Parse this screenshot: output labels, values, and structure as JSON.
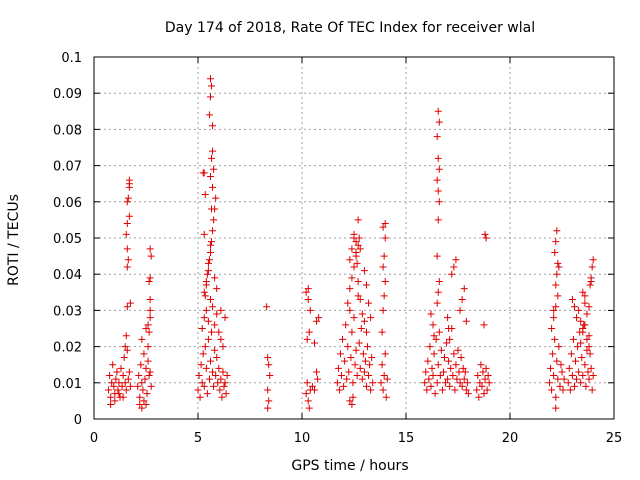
{
  "chart_data": {
    "type": "scatter",
    "title": "Day 174 of 2018, Rate Of TEC Index for receiver wlal",
    "xlabel": "GPS time / hours",
    "ylabel": "ROTI / TECUs",
    "xlim": [
      0,
      25
    ],
    "ylim": [
      0,
      0.1
    ],
    "xticks": [
      "0",
      "5",
      "10",
      "15",
      "20",
      "25"
    ],
    "yticks": [
      "0",
      "0.01",
      "0.02",
      "0.03",
      "0.04",
      "0.05",
      "0.06",
      "0.07",
      "0.08",
      "0.09",
      "0.1"
    ],
    "grid": true,
    "marker": "plus",
    "series_color": "#e00000",
    "series": [
      {
        "name": "ROTI",
        "x": [
          0.7,
          0.75,
          0.8,
          0.85,
          0.9,
          0.95,
          1.0,
          1.05,
          1.1,
          1.15,
          1.2,
          1.25,
          1.3,
          1.35,
          1.4,
          1.45,
          1.5,
          1.55,
          1.6,
          1.65,
          1.7,
          1.75,
          0.8,
          1.0,
          1.2,
          1.4,
          1.5,
          1.55,
          1.6,
          1.6,
          1.65,
          1.6,
          1.55,
          1.6,
          1.7,
          1.6,
          1.65,
          1.7,
          1.7,
          1.7,
          1.75,
          2.1,
          2.15,
          2.2,
          2.25,
          2.3,
          2.35,
          2.4,
          2.45,
          2.5,
          2.55,
          2.6,
          2.65,
          2.7,
          2.75,
          2.2,
          2.3,
          2.4,
          2.5,
          2.6,
          2.65,
          2.7,
          2.7,
          2.7,
          2.65,
          2.7,
          2.75,
          2.7,
          2.6,
          2.3,
          2.5,
          5.0,
          5.05,
          5.1,
          5.15,
          5.2,
          5.25,
          5.3,
          5.35,
          5.4,
          5.45,
          5.5,
          5.55,
          5.6,
          5.65,
          5.7,
          5.75,
          5.8,
          5.85,
          5.9,
          5.95,
          6.0,
          6.05,
          6.1,
          6.15,
          6.2,
          6.25,
          6.3,
          6.35,
          6.4,
          5.2,
          5.3,
          5.4,
          5.5,
          5.6,
          5.7,
          5.8,
          5.9,
          6.0,
          6.1,
          6.2,
          5.3,
          5.4,
          5.5,
          5.55,
          5.6,
          5.65,
          5.7,
          5.75,
          5.8,
          5.85,
          5.3,
          5.35,
          5.25,
          5.6,
          5.65,
          5.7,
          5.75,
          5.55,
          5.6,
          5.65,
          5.6,
          5.7,
          5.7,
          5.65,
          5.6,
          5.5,
          5.45,
          5.4,
          5.35,
          5.3,
          5.8,
          5.9,
          6.1,
          6.3,
          8.3,
          8.35,
          8.4,
          8.45,
          8.35,
          8.4,
          8.35,
          10.2,
          10.25,
          10.3,
          10.35,
          10.4,
          10.5,
          10.6,
          10.7,
          10.75,
          10.8,
          10.3,
          10.4,
          10.6,
          10.7,
          10.2,
          10.3,
          10.25,
          10.35,
          11.7,
          11.75,
          11.8,
          11.85,
          11.9,
          11.95,
          12.0,
          12.05,
          12.1,
          12.15,
          12.2,
          12.25,
          12.3,
          12.35,
          12.4,
          12.45,
          12.5,
          12.55,
          12.6,
          12.65,
          12.7,
          12.75,
          12.8,
          12.85,
          12.9,
          12.95,
          13.0,
          13.05,
          13.1,
          13.15,
          13.2,
          13.25,
          13.3,
          13.35,
          13.4,
          12.2,
          12.3,
          12.4,
          12.5,
          12.6,
          12.7,
          12.8,
          12.9,
          13.0,
          13.1,
          12.3,
          12.4,
          12.5,
          12.6,
          12.7,
          12.5,
          12.6,
          12.65,
          12.7,
          12.75,
          12.8,
          13.0,
          13.1,
          13.2,
          13.3,
          12.3,
          12.4,
          12.45,
          13.8,
          13.85,
          13.9,
          13.95,
          14.0,
          14.05,
          14.1,
          13.85,
          13.9,
          13.95,
          14.0,
          13.9,
          13.95,
          14.0,
          14.0,
          13.9,
          15.9,
          15.95,
          16.0,
          16.05,
          16.1,
          16.15,
          16.2,
          16.25,
          16.3,
          16.35,
          16.4,
          16.45,
          16.5,
          16.55,
          16.6,
          16.65,
          16.7,
          16.75,
          16.8,
          16.85,
          16.9,
          16.95,
          17.0,
          17.05,
          17.1,
          17.15,
          17.2,
          17.25,
          17.3,
          17.35,
          17.4,
          17.45,
          17.5,
          17.55,
          17.6,
          17.65,
          17.7,
          17.75,
          17.8,
          17.85,
          17.9,
          17.95,
          18.0,
          16.5,
          16.55,
          16.6,
          16.55,
          16.6,
          16.55,
          16.5,
          16.6,
          16.55,
          16.5,
          16.6,
          16.55,
          16.5,
          17.0,
          17.05,
          17.1,
          17.6,
          17.7,
          17.8,
          16.2,
          16.3,
          16.35,
          17.2,
          17.3,
          17.4,
          17.9,
          18.4,
          18.45,
          18.5,
          18.55,
          18.6,
          18.65,
          18.7,
          18.75,
          18.8,
          18.85,
          18.9,
          18.95,
          19.0,
          18.8,
          18.85,
          18.75,
          21.9,
          21.95,
          22.0,
          22.05,
          22.1,
          22.15,
          22.2,
          22.25,
          22.3,
          22.35,
          22.4,
          22.45,
          22.5,
          22.55,
          22.6,
          22.0,
          22.1,
          22.2,
          22.3,
          22.2,
          22.25,
          22.3,
          22.15,
          22.2,
          22.25,
          22.35,
          22.1,
          22.2,
          22.8,
          22.85,
          22.9,
          22.95,
          23.0,
          23.05,
          23.1,
          23.15,
          23.2,
          23.25,
          23.3,
          23.35,
          23.4,
          23.45,
          23.5,
          23.55,
          23.6,
          23.65,
          23.7,
          23.75,
          23.8,
          23.85,
          23.9,
          23.95,
          24.0,
          23.2,
          23.3,
          23.4,
          23.5,
          23.6,
          23.7,
          23.8,
          23.4,
          23.5,
          23.6,
          23.7,
          23.8,
          23.0,
          23.1,
          23.5,
          23.6,
          23.8,
          23.9,
          23.85,
          23.9,
          23.95,
          24.0
        ],
        "y": [
          0.008,
          0.012,
          0.006,
          0.01,
          0.015,
          0.009,
          0.007,
          0.011,
          0.013,
          0.008,
          0.01,
          0.006,
          0.014,
          0.009,
          0.012,
          0.017,
          0.01,
          0.008,
          0.019,
          0.011,
          0.013,
          0.009,
          0.004,
          0.005,
          0.007,
          0.006,
          0.02,
          0.023,
          0.031,
          0.042,
          0.044,
          0.047,
          0.051,
          0.054,
          0.056,
          0.06,
          0.061,
          0.064,
          0.065,
          0.066,
          0.032,
          0.009,
          0.012,
          0.006,
          0.015,
          0.01,
          0.008,
          0.018,
          0.011,
          0.014,
          0.007,
          0.016,
          0.012,
          0.013,
          0.009,
          0.004,
          0.003,
          0.005,
          0.004,
          0.02,
          0.024,
          0.028,
          0.03,
          0.033,
          0.038,
          0.039,
          0.045,
          0.047,
          0.026,
          0.022,
          0.025,
          0.008,
          0.012,
          0.006,
          0.015,
          0.01,
          0.018,
          0.009,
          0.02,
          0.014,
          0.007,
          0.022,
          0.011,
          0.016,
          0.024,
          0.013,
          0.009,
          0.019,
          0.012,
          0.017,
          0.01,
          0.014,
          0.008,
          0.011,
          0.006,
          0.013,
          0.009,
          0.01,
          0.007,
          0.012,
          0.025,
          0.028,
          0.03,
          0.027,
          0.033,
          0.031,
          0.026,
          0.029,
          0.024,
          0.022,
          0.02,
          0.035,
          0.038,
          0.041,
          0.044,
          0.046,
          0.049,
          0.052,
          0.055,
          0.058,
          0.061,
          0.068,
          0.062,
          0.068,
          0.067,
          0.072,
          0.074,
          0.069,
          0.084,
          0.089,
          0.092,
          0.094,
          0.081,
          0.064,
          0.058,
          0.048,
          0.043,
          0.04,
          0.037,
          0.034,
          0.051,
          0.039,
          0.036,
          0.03,
          0.028,
          0.031,
          0.017,
          0.015,
          0.012,
          0.008,
          0.005,
          0.003,
          0.007,
          0.01,
          0.005,
          0.003,
          0.008,
          0.009,
          0.008,
          0.013,
          0.011,
          0.028,
          0.033,
          0.03,
          0.021,
          0.027,
          0.035,
          0.036,
          0.022,
          0.024,
          0.01,
          0.014,
          0.008,
          0.018,
          0.012,
          0.022,
          0.009,
          0.016,
          0.026,
          0.011,
          0.02,
          0.013,
          0.03,
          0.017,
          0.024,
          0.01,
          0.028,
          0.015,
          0.019,
          0.012,
          0.034,
          0.021,
          0.014,
          0.025,
          0.011,
          0.018,
          0.013,
          0.016,
          0.009,
          0.02,
          0.012,
          0.015,
          0.008,
          0.017,
          0.01,
          0.032,
          0.036,
          0.039,
          0.042,
          0.045,
          0.038,
          0.033,
          0.029,
          0.027,
          0.024,
          0.044,
          0.047,
          0.05,
          0.049,
          0.048,
          0.051,
          0.046,
          0.043,
          0.055,
          0.05,
          0.047,
          0.041,
          0.037,
          0.032,
          0.028,
          0.005,
          0.004,
          0.006,
          0.01,
          0.015,
          0.008,
          0.012,
          0.018,
          0.006,
          0.011,
          0.024,
          0.03,
          0.034,
          0.038,
          0.042,
          0.045,
          0.05,
          0.054,
          0.053,
          0.01,
          0.013,
          0.008,
          0.016,
          0.011,
          0.02,
          0.009,
          0.014,
          0.012,
          0.018,
          0.007,
          0.022,
          0.01,
          0.015,
          0.024,
          0.012,
          0.019,
          0.008,
          0.013,
          0.017,
          0.01,
          0.021,
          0.011,
          0.016,
          0.009,
          0.014,
          0.025,
          0.012,
          0.018,
          0.008,
          0.015,
          0.011,
          0.019,
          0.013,
          0.01,
          0.017,
          0.009,
          0.014,
          0.011,
          0.013,
          0.008,
          0.01,
          0.007,
          0.032,
          0.035,
          0.038,
          0.055,
          0.06,
          0.063,
          0.066,
          0.069,
          0.072,
          0.078,
          0.082,
          0.085,
          0.045,
          0.028,
          0.025,
          0.022,
          0.03,
          0.033,
          0.036,
          0.029,
          0.026,
          0.023,
          0.04,
          0.042,
          0.044,
          0.027,
          0.008,
          0.012,
          0.006,
          0.01,
          0.015,
          0.009,
          0.013,
          0.007,
          0.011,
          0.014,
          0.008,
          0.012,
          0.01,
          0.051,
          0.05,
          0.026,
          0.01,
          0.014,
          0.008,
          0.018,
          0.012,
          0.022,
          0.006,
          0.016,
          0.011,
          0.02,
          0.009,
          0.015,
          0.013,
          0.008,
          0.011,
          0.025,
          0.028,
          0.031,
          0.034,
          0.037,
          0.04,
          0.043,
          0.046,
          0.049,
          0.052,
          0.042,
          0.03,
          0.003,
          0.01,
          0.014,
          0.008,
          0.018,
          0.012,
          0.022,
          0.009,
          0.016,
          0.011,
          0.02,
          0.013,
          0.024,
          0.01,
          0.017,
          0.012,
          0.026,
          0.015,
          0.009,
          0.019,
          0.013,
          0.011,
          0.018,
          0.014,
          0.008,
          0.012,
          0.028,
          0.03,
          0.027,
          0.025,
          0.032,
          0.029,
          0.023,
          0.021,
          0.024,
          0.026,
          0.022,
          0.02,
          0.033,
          0.031,
          0.035,
          0.034,
          0.031,
          0.038,
          0.037,
          0.039,
          0.042,
          0.044
        ]
      }
    ]
  }
}
